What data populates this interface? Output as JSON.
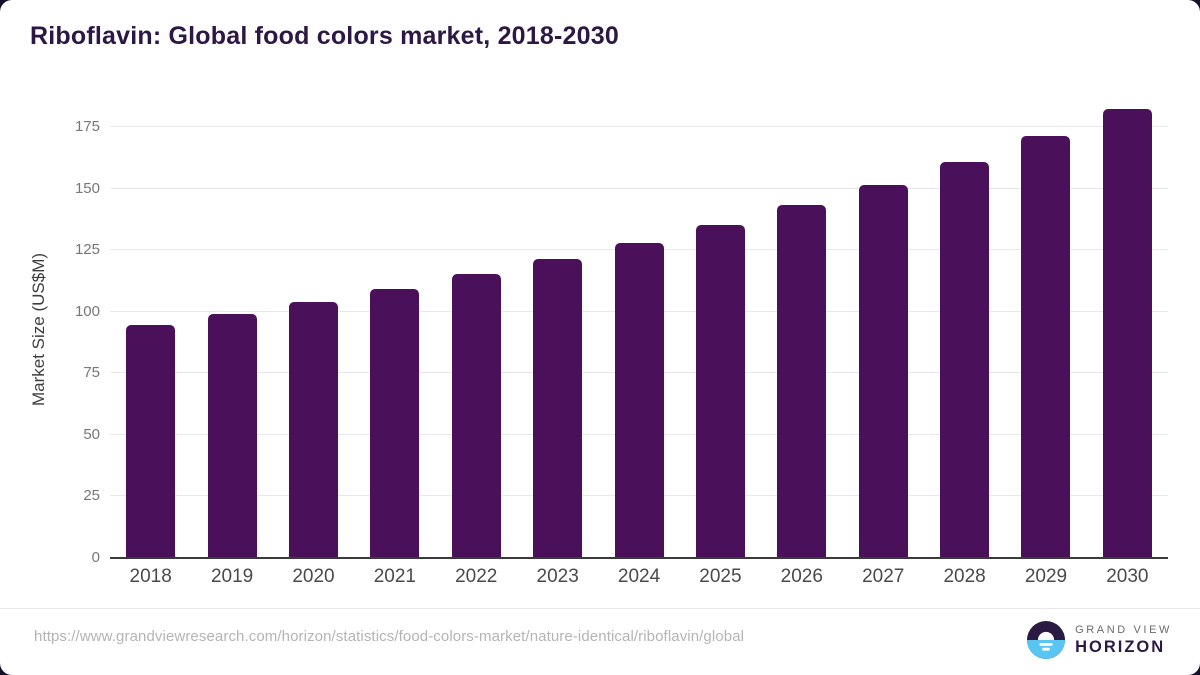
{
  "page": {
    "title": "Riboflavin: Global food colors market, 2018-2030",
    "source_url": "https://www.grandviewresearch.com/horizon/statistics/food-colors-market/nature-identical/riboflavin/global",
    "brand": {
      "line1": "GRAND VIEW",
      "line2": "HORIZON"
    }
  },
  "colors": {
    "bar": "#4a115a",
    "title": "#2d1745",
    "axis-label": "#4a4a4a",
    "tick-label": "#767676",
    "gridline": "#e8e8e8",
    "baseline": "#3a3a3a",
    "url-text": "#b4b4b4",
    "brand-gray": "#6b6b6b",
    "brand-purple": "#2d1745",
    "logo-dark": "#2b1a42",
    "logo-blue": "#58c5f2",
    "page-bg": "#16102b"
  },
  "chart_data": {
    "type": "bar",
    "title": "Riboflavin: Global food colors market, 2018-2030",
    "categories": [
      "2018",
      "2019",
      "2020",
      "2021",
      "2022",
      "2023",
      "2024",
      "2025",
      "2026",
      "2027",
      "2028",
      "2029",
      "2030"
    ],
    "values": [
      94.5,
      99.2,
      104.1,
      109.4,
      115.2,
      121.3,
      128.0,
      135.4,
      143.2,
      151.6,
      161.0,
      171.2,
      182.2
    ],
    "xlabel": "",
    "ylabel": "Market Size (US$M)",
    "ylim": [
      0,
      186
    ],
    "yticks": [
      0,
      25,
      50,
      75,
      100,
      125,
      150,
      175
    ],
    "grid": true,
    "legend": false,
    "bar_color": "#4a115a"
  }
}
